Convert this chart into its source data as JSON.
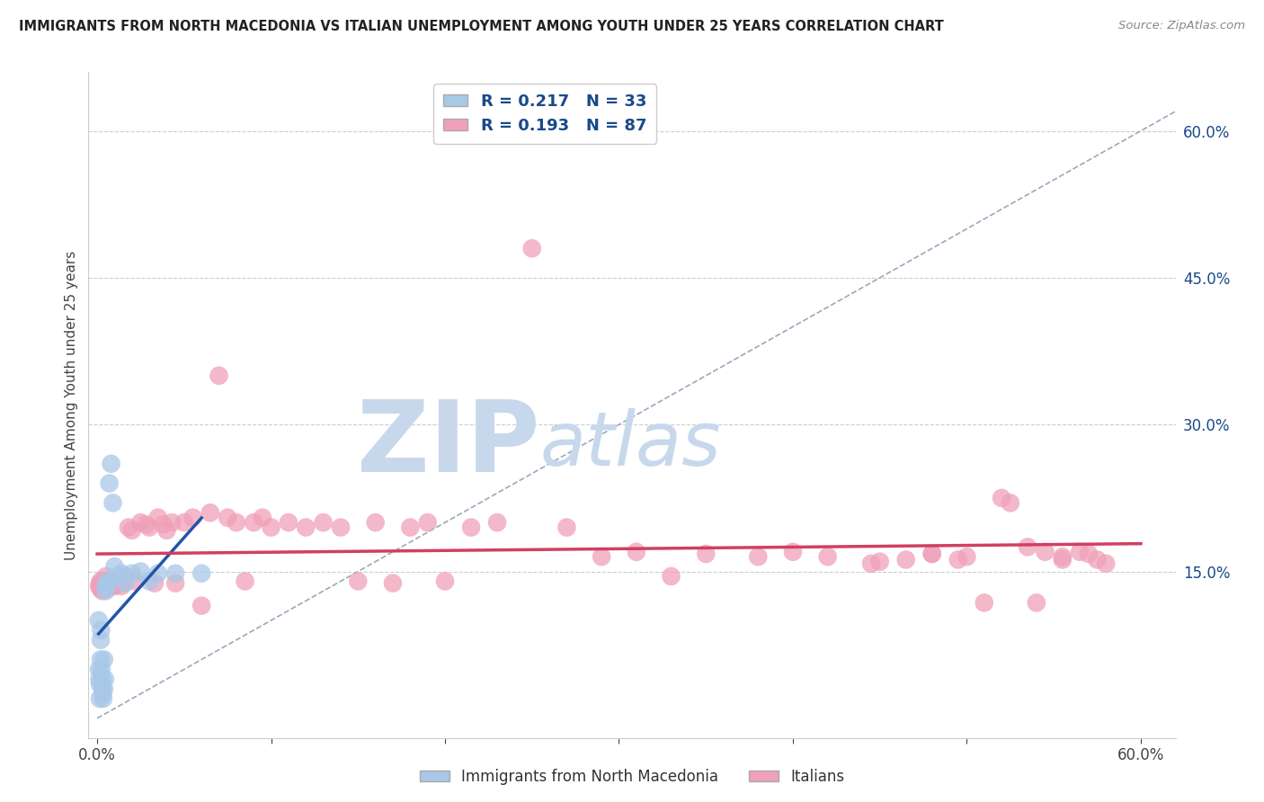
{
  "title": "IMMIGRANTS FROM NORTH MACEDONIA VS ITALIAN UNEMPLOYMENT AMONG YOUTH UNDER 25 YEARS CORRELATION CHART",
  "source": "Source: ZipAtlas.com",
  "ylabel": "Unemployment Among Youth under 25 years",
  "xlim": [
    -0.005,
    0.62
  ],
  "ylim": [
    -0.02,
    0.66
  ],
  "xtick_positions": [
    0.0,
    0.1,
    0.2,
    0.3,
    0.4,
    0.5,
    0.6
  ],
  "xtick_labels": [
    "0.0%",
    "",
    "",
    "",
    "",
    "",
    "60.0%"
  ],
  "ytick_positions": [
    0.15,
    0.3,
    0.45,
    0.6
  ],
  "ytick_labels": [
    "15.0%",
    "30.0%",
    "45.0%",
    "60.0%"
  ],
  "gridline_color": "#cccccc",
  "background_color": "#ffffff",
  "watermark_zip": "ZIP",
  "watermark_atlas": "atlas",
  "watermark_color": "#c8d8ec",
  "series1_label": "Immigrants from North Macedonia",
  "series1_R": "0.217",
  "series1_N": "33",
  "series1_color": "#a8c8e8",
  "series1_line_color": "#2255aa",
  "series2_label": "Italians",
  "series2_R": "0.193",
  "series2_N": "87",
  "series2_color": "#f0a0b8",
  "series2_line_color": "#d04060",
  "legend_color": "#1a4a8a",
  "diag_color": "#99aabb",
  "series1_x": [
    0.0008,
    0.001,
    0.0012,
    0.0015,
    0.0015,
    0.002,
    0.002,
    0.0022,
    0.0025,
    0.003,
    0.003,
    0.0032,
    0.0035,
    0.004,
    0.004,
    0.0045,
    0.005,
    0.005,
    0.006,
    0.006,
    0.007,
    0.008,
    0.009,
    0.01,
    0.012,
    0.014,
    0.016,
    0.02,
    0.025,
    0.03,
    0.035,
    0.045,
    0.06
  ],
  "series1_y": [
    0.1,
    0.05,
    0.04,
    0.035,
    0.02,
    0.06,
    0.08,
    0.09,
    0.05,
    0.04,
    0.03,
    0.025,
    0.02,
    0.06,
    0.03,
    0.04,
    0.13,
    0.135,
    0.14,
    0.138,
    0.24,
    0.26,
    0.22,
    0.155,
    0.145,
    0.148,
    0.138,
    0.148,
    0.15,
    0.14,
    0.148,
    0.148,
    0.148
  ],
  "series2_x": [
    0.001,
    0.0015,
    0.002,
    0.002,
    0.0025,
    0.003,
    0.003,
    0.0035,
    0.004,
    0.004,
    0.005,
    0.005,
    0.006,
    0.006,
    0.007,
    0.008,
    0.009,
    0.01,
    0.01,
    0.012,
    0.013,
    0.014,
    0.015,
    0.016,
    0.018,
    0.02,
    0.022,
    0.025,
    0.028,
    0.03,
    0.033,
    0.035,
    0.038,
    0.04,
    0.043,
    0.045,
    0.05,
    0.055,
    0.06,
    0.065,
    0.07,
    0.075,
    0.08,
    0.085,
    0.09,
    0.095,
    0.1,
    0.11,
    0.12,
    0.13,
    0.14,
    0.15,
    0.16,
    0.17,
    0.18,
    0.19,
    0.2,
    0.215,
    0.23,
    0.25,
    0.27,
    0.29,
    0.31,
    0.33,
    0.35,
    0.38,
    0.4,
    0.42,
    0.45,
    0.48,
    0.5,
    0.52,
    0.54,
    0.555,
    0.565,
    0.575,
    0.58,
    0.57,
    0.555,
    0.545,
    0.535,
    0.525,
    0.51,
    0.495,
    0.48,
    0.465,
    0.445
  ],
  "series2_y": [
    0.135,
    0.138,
    0.14,
    0.132,
    0.135,
    0.138,
    0.13,
    0.136,
    0.135,
    0.14,
    0.132,
    0.145,
    0.135,
    0.14,
    0.138,
    0.14,
    0.135,
    0.14,
    0.135,
    0.142,
    0.14,
    0.135,
    0.138,
    0.145,
    0.195,
    0.192,
    0.14,
    0.2,
    0.198,
    0.195,
    0.138,
    0.205,
    0.198,
    0.192,
    0.2,
    0.138,
    0.2,
    0.205,
    0.115,
    0.21,
    0.35,
    0.205,
    0.2,
    0.14,
    0.2,
    0.205,
    0.195,
    0.2,
    0.195,
    0.2,
    0.195,
    0.14,
    0.2,
    0.138,
    0.195,
    0.2,
    0.14,
    0.195,
    0.2,
    0.48,
    0.195,
    0.165,
    0.17,
    0.145,
    0.168,
    0.165,
    0.17,
    0.165,
    0.16,
    0.168,
    0.165,
    0.225,
    0.118,
    0.165,
    0.17,
    0.162,
    0.158,
    0.168,
    0.162,
    0.17,
    0.175,
    0.22,
    0.118,
    0.162,
    0.168,
    0.162,
    0.158
  ]
}
